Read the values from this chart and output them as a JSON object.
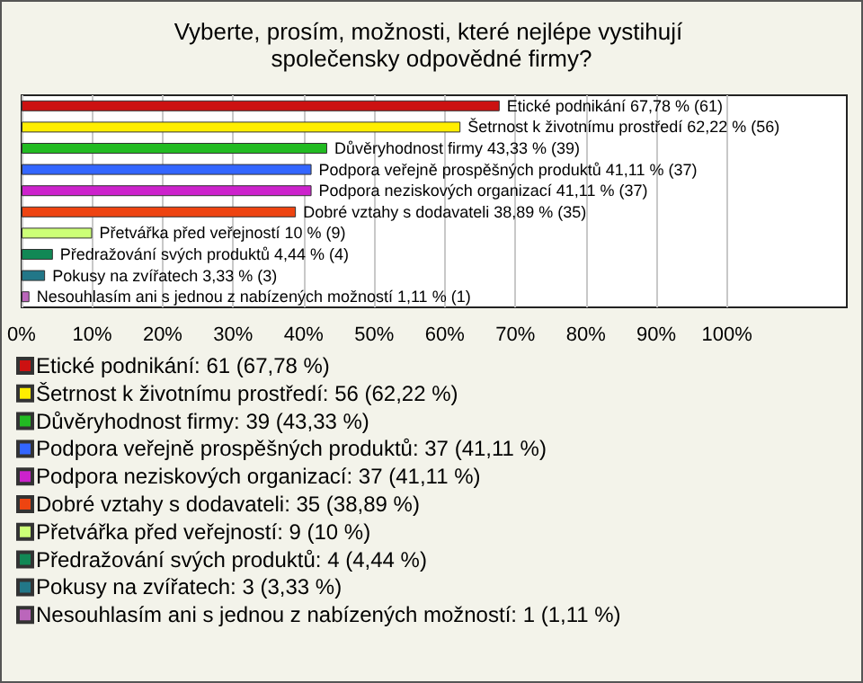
{
  "chart_data": {
    "type": "bar",
    "orientation": "horizontal",
    "stacked": true,
    "title": "Vyberte, prosím, možnosti, které nejlépe vystihují společensky odpovědné firmy?",
    "categories": [
      null,
      null,
      null,
      null,
      null,
      null,
      null,
      null,
      null,
      null
    ],
    "series": [
      {
        "name": "Etické podnikání: 61 (67,78 %)",
        "color": "#cc1111",
        "values": [
          67.78,
          null,
          null,
          null,
          null,
          null,
          null,
          null,
          null,
          null
        ],
        "value_labels": [
          "Etické podnikání 67,78 % (61)",
          null,
          null,
          null,
          null,
          null,
          null,
          null,
          null,
          null
        ]
      },
      {
        "name": "Šetrnost k životnímu prostředí: 56 (62,22 %)",
        "color": "#ffee00",
        "values": [
          null,
          62.22,
          null,
          null,
          null,
          null,
          null,
          null,
          null,
          null
        ],
        "value_labels": [
          null,
          "Šetrnost k životnímu prostředí 62,22 % (56)",
          null,
          null,
          null,
          null,
          null,
          null,
          null,
          null
        ]
      },
      {
        "name": "Důvěryhodnost firmy: 39 (43,33 %)",
        "color": "#22bb22",
        "values": [
          null,
          null,
          43.33,
          null,
          null,
          null,
          null,
          null,
          null,
          null
        ],
        "value_labels": [
          null,
          null,
          "Důvěryhodnost firmy 43,33 % (39)",
          null,
          null,
          null,
          null,
          null,
          null,
          null
        ]
      },
      {
        "name": "Podpora veřejně prospěšných produktů: 37 (41,11 %)",
        "color": "#3366ff",
        "values": [
          null,
          null,
          null,
          41.11,
          null,
          null,
          null,
          null,
          null,
          null
        ],
        "value_labels": [
          null,
          null,
          null,
          "Podpora veřejně prospěšných produktů 41,11 % (37)",
          null,
          null,
          null,
          null,
          null,
          null
        ]
      },
      {
        "name": "Podpora neziskových organizací: 37 (41,11 %)",
        "color": "#cc22cc",
        "values": [
          null,
          null,
          null,
          null,
          41.11,
          null,
          null,
          null,
          null,
          null
        ],
        "value_labels": [
          null,
          null,
          null,
          null,
          "Podpora neziskových organizací 41,11 % (37)",
          null,
          null,
          null,
          null,
          null
        ]
      },
      {
        "name": "Dobré vztahy s dodavateli: 35 (38,89 %)",
        "color": "#ee4411",
        "values": [
          null,
          null,
          null,
          null,
          null,
          38.89,
          null,
          null,
          null,
          null
        ],
        "value_labels": [
          null,
          null,
          null,
          null,
          null,
          "Dobré vztahy s dodavateli 38,89 % (35)",
          null,
          null,
          null,
          null
        ]
      },
      {
        "name": "Přetvářka před veřejností: 9 (10 %)",
        "color": "#ccff77",
        "values": [
          null,
          null,
          null,
          null,
          null,
          null,
          10,
          null,
          null,
          null
        ],
        "value_labels": [
          null,
          null,
          null,
          null,
          null,
          null,
          "Přetvářka před veřejností 10 % (9)",
          null,
          null,
          null
        ]
      },
      {
        "name": "Předražování svých produktů: 4 (4,44 %)",
        "color": "#118855",
        "values": [
          null,
          null,
          null,
          null,
          null,
          null,
          null,
          4.44,
          null,
          null
        ],
        "value_labels": [
          null,
          null,
          null,
          null,
          null,
          null,
          null,
          "Předražování svých produktů 4,44 % (4)",
          null,
          null
        ]
      },
      {
        "name": "Pokusy na zvířatech: 3 (3,33 %)",
        "color": "#227788",
        "values": [
          null,
          null,
          null,
          null,
          null,
          null,
          null,
          null,
          3.33,
          null
        ],
        "value_labels": [
          null,
          null,
          null,
          null,
          null,
          null,
          null,
          null,
          "Pokusy na zvířatech 3,33 % (3)",
          null
        ]
      },
      {
        "name": "Nesouhlasím ani s jednou z nabízených možností: 1 (1,11 %)",
        "color": "#bb66bb",
        "values": [
          null,
          null,
          null,
          null,
          null,
          null,
          null,
          null,
          null,
          1.11
        ],
        "value_labels": [
          null,
          null,
          null,
          null,
          null,
          null,
          null,
          null,
          null,
          "Nesouhlasím ani s jednou z nabízených možností 1,11 % (1)"
        ]
      }
    ],
    "xlim": [
      0,
      117
    ],
    "xticks": [
      {
        "value": 0,
        "label": "0%"
      },
      {
        "value": 10,
        "label": "10%"
      },
      {
        "value": 20,
        "label": "20%"
      },
      {
        "value": 30,
        "label": "30%"
      },
      {
        "value": 40,
        "label": "40%"
      },
      {
        "value": 50,
        "label": "50%"
      },
      {
        "value": 60,
        "label": "60%"
      },
      {
        "value": 70,
        "label": "70%"
      },
      {
        "value": 80,
        "label": "80%"
      },
      {
        "value": 90,
        "label": "90%"
      },
      {
        "value": 100,
        "label": "100%"
      }
    ],
    "grid": "x",
    "legend": "bottom"
  }
}
